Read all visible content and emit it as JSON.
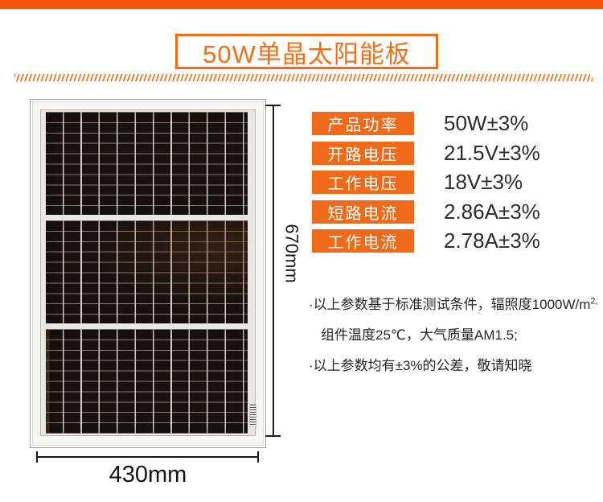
{
  "meta": {
    "page_kind": "product-spec-infographic",
    "colors": {
      "top_bar": "#f4530d",
      "accent_orange": "#f26c15",
      "label_bg": "#f06a1a",
      "value_text": "#2d2d2d",
      "dim_line": "#1b1b1b"
    }
  },
  "header": {
    "title": "50W单晶太阳能板"
  },
  "panel_figure": {
    "image_kind": "solar-panel-photo",
    "height_label": "670mm",
    "width_label": "430mm"
  },
  "specs": {
    "rows": [
      {
        "label": "产品功率",
        "value": "50W±3%"
      },
      {
        "label": "开路电压",
        "value": "21.5V±3%"
      },
      {
        "label": "工作电压",
        "value": "18V±3%"
      },
      {
        "label": "短路电流",
        "value": "2.86A±3%"
      },
      {
        "label": "工作电流",
        "value": "2.78A±3%"
      }
    ]
  },
  "notes": {
    "line1_main": "·以上参数基于标准测试条件，辐照度1000W/m",
    "line1_sup": "2,",
    "line2": "组件温度25℃，大气质量AM1.5;",
    "line3": "·以上参数均有±3%的公差，敬请知晓"
  }
}
